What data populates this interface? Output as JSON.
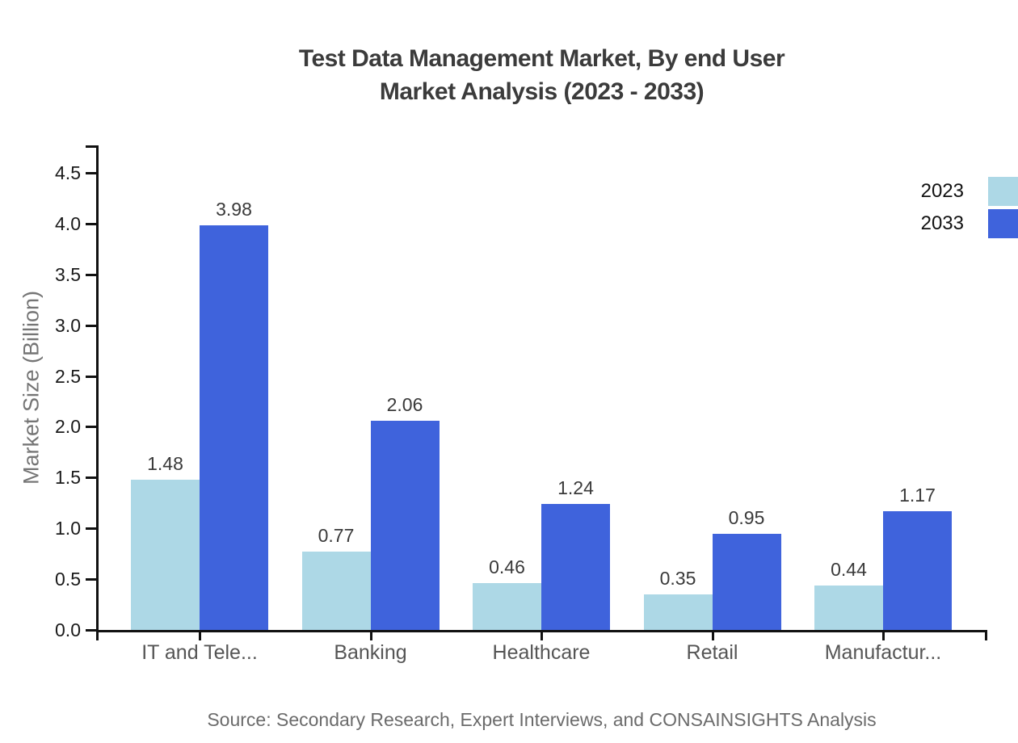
{
  "title": {
    "line1": "Test Data Management Market, By end User",
    "line2": "Market Analysis (2023 - 2033)"
  },
  "source": "Source: Secondary Research, Expert Interviews, and CONSAINSIGHTS Analysis",
  "chart_data": {
    "type": "bar",
    "title": "Test Data Management Market, By end User Market Analysis (2023 - 2033)",
    "categories": [
      "IT and Tele...",
      "Banking",
      "Healthcare",
      "Retail",
      "Manufactur..."
    ],
    "series": [
      {
        "name": "2023",
        "color": "#ADD8E6",
        "values": [
          1.48,
          0.77,
          0.46,
          0.35,
          0.44
        ]
      },
      {
        "name": "2033",
        "color": "#3F63DC",
        "values": [
          3.98,
          2.06,
          1.24,
          0.95,
          1.17
        ]
      }
    ],
    "xlabel": "",
    "ylabel": "Market Size (Billion)",
    "yticks": [
      0.0,
      0.5,
      1.0,
      1.5,
      2.0,
      2.5,
      3.0,
      3.5,
      4.0,
      4.5
    ],
    "ytick_labels": [
      "0.0",
      "0.5",
      "1.0",
      "1.5",
      "2.0",
      "2.5",
      "3.0",
      "3.5",
      "4.0",
      "4.5"
    ],
    "ylim": [
      0,
      4.77
    ],
    "grid": false,
    "value_labels": true,
    "legend_position": "top-right"
  }
}
